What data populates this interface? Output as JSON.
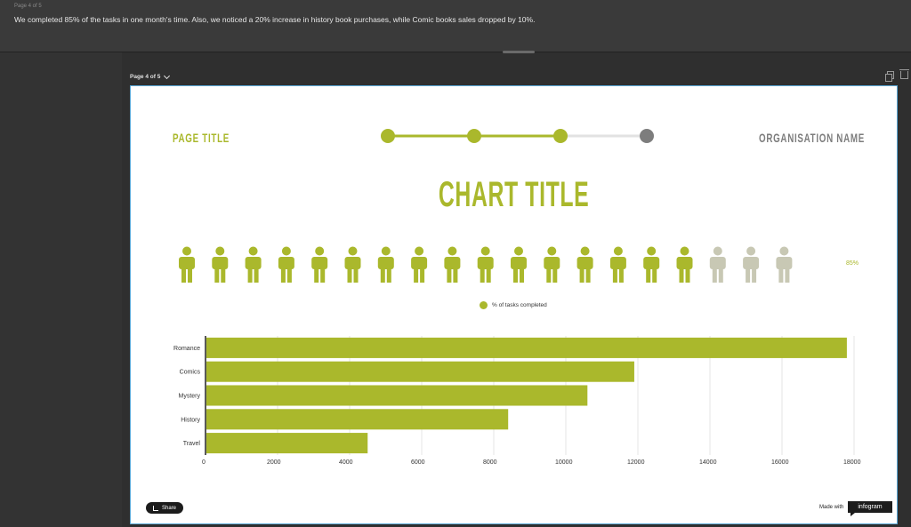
{
  "header": {
    "page_indicator": "Page 4 of 5",
    "note": "We completed 85% of the tasks in one month's time. Also, we noticed a 20% increase in history book purchases, while Comic books sales dropped by 10%."
  },
  "toolbar": {
    "page_select": "Page 4 of 5",
    "copy_icon": "copy-icon",
    "delete_icon": "trash-icon"
  },
  "slide": {
    "page_title": "PAGE TITLE",
    "org_name": "ORGANISATION NAME",
    "chart_title": "CHART TITLE",
    "progress_steps": 4,
    "progress_active": 3
  },
  "colors": {
    "accent": "#aab82c",
    "inactive_person": "#c8c8b4",
    "inactive_step": "#7d7d7d"
  },
  "chart_data": [
    {
      "type": "pictorial",
      "total_icons": 19,
      "filled_icons": 16,
      "value_label": "85%",
      "legend": [
        "% of tasks completed"
      ]
    },
    {
      "type": "bar",
      "orientation": "horizontal",
      "categories": [
        "Romance",
        "Comics",
        "Mystery",
        "History",
        "Travel"
      ],
      "values": [
        17800,
        11900,
        10600,
        8400,
        4500
      ],
      "xlim": [
        0,
        18000
      ],
      "xticks": [
        0,
        2000,
        4000,
        6000,
        8000,
        10000,
        12000,
        14000,
        16000,
        18000
      ],
      "grid": true
    }
  ],
  "footer": {
    "share_label": "Share",
    "made_with": "Made with",
    "logo": "infogram"
  }
}
